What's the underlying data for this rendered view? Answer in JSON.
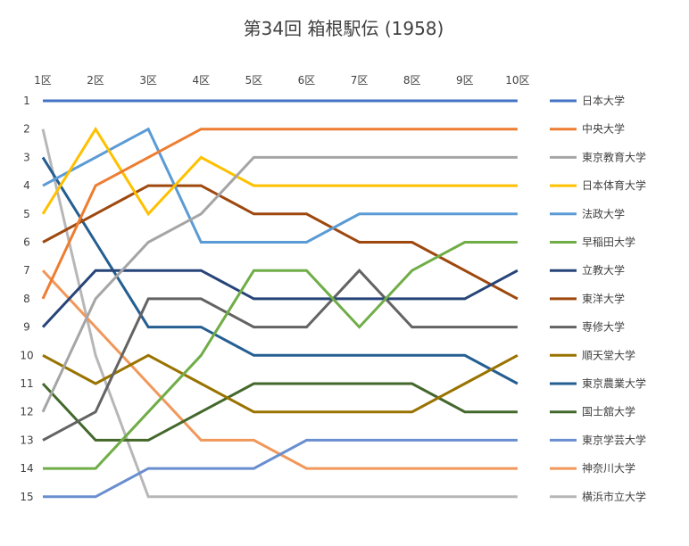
{
  "chart_data": {
    "type": "line",
    "title": "第34回 箱根駅伝 (1958)",
    "categories": [
      "1区",
      "2区",
      "3区",
      "4区",
      "5区",
      "6区",
      "7区",
      "8区",
      "9区",
      "10区"
    ],
    "y_ticks": [
      "1",
      "2",
      "3",
      "4",
      "5",
      "6",
      "7",
      "8",
      "9",
      "10",
      "11",
      "12",
      "13",
      "14",
      "15"
    ],
    "ylim": [
      1,
      15
    ],
    "y_inverted": true,
    "grid": false,
    "legend_position": "right",
    "series": [
      {
        "name": "日本大学",
        "color": "#4472C4",
        "values": [
          1,
          1,
          1,
          1,
          1,
          1,
          1,
          1,
          1,
          1
        ]
      },
      {
        "name": "中央大学",
        "color": "#ED7D31",
        "values": [
          8,
          4,
          3,
          2,
          2,
          2,
          2,
          2,
          2,
          2
        ]
      },
      {
        "name": "東京教育大学",
        "color": "#A5A5A5",
        "values": [
          12,
          8,
          6,
          5,
          3,
          3,
          3,
          3,
          3,
          3
        ]
      },
      {
        "name": "日本体育大学",
        "color": "#FFC000",
        "values": [
          5,
          2,
          5,
          3,
          4,
          4,
          4,
          4,
          4,
          4
        ]
      },
      {
        "name": "法政大学",
        "color": "#5B9BD5",
        "values": [
          4,
          3,
          2,
          6,
          6,
          6,
          5,
          5,
          5,
          5
        ]
      },
      {
        "name": "早稲田大学",
        "color": "#70AD47",
        "values": [
          14,
          14,
          12,
          10,
          7,
          7,
          9,
          7,
          6,
          6
        ]
      },
      {
        "name": "立教大学",
        "color": "#264478",
        "values": [
          9,
          7,
          7,
          7,
          8,
          8,
          8,
          8,
          8,
          7
        ]
      },
      {
        "name": "東洋大学",
        "color": "#9E480E",
        "values": [
          6,
          5,
          4,
          4,
          5,
          5,
          6,
          6,
          7,
          8
        ]
      },
      {
        "name": "専修大学",
        "color": "#636363",
        "values": [
          13,
          12,
          8,
          8,
          9,
          9,
          7,
          9,
          9,
          9
        ]
      },
      {
        "name": "順天堂大学",
        "color": "#997300",
        "values": [
          10,
          11,
          10,
          11,
          12,
          12,
          12,
          12,
          11,
          10
        ]
      },
      {
        "name": "東京農業大学",
        "color": "#255E91",
        "values": [
          3,
          6,
          9,
          9,
          10,
          10,
          10,
          10,
          10,
          11
        ]
      },
      {
        "name": "国士舘大学",
        "color": "#43682B",
        "values": [
          11,
          13,
          13,
          12,
          11,
          11,
          11,
          11,
          12,
          12
        ]
      },
      {
        "name": "東京学芸大学",
        "color": "#698ED0",
        "values": [
          15,
          15,
          14,
          14,
          14,
          13,
          13,
          13,
          13,
          13
        ]
      },
      {
        "name": "神奈川大学",
        "color": "#F1975A",
        "values": [
          7,
          9,
          11,
          13,
          13,
          14,
          14,
          14,
          14,
          14
        ]
      },
      {
        "name": "横浜市立大学",
        "color": "#B7B7B7",
        "values": [
          2,
          10,
          15,
          15,
          15,
          15,
          15,
          15,
          15,
          15
        ]
      }
    ]
  }
}
